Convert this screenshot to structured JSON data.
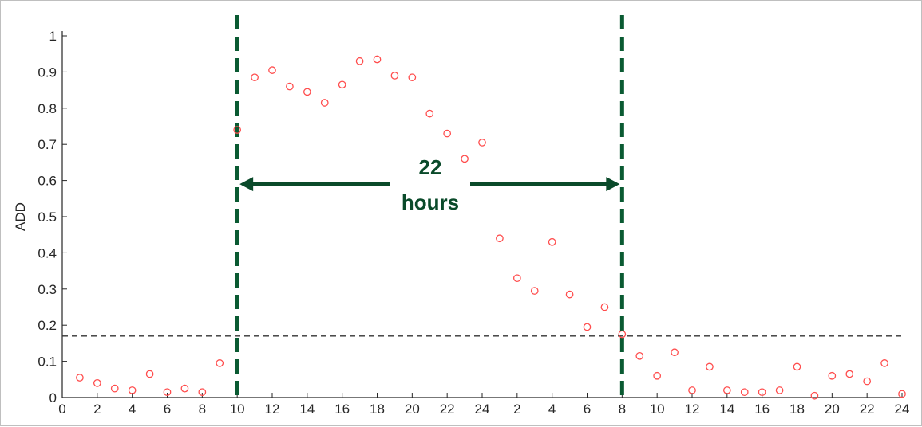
{
  "chart_data": {
    "type": "scatter",
    "title": "",
    "xlabel": "",
    "ylabel": "ADD",
    "x_tick_labels": [
      "0",
      "2",
      "4",
      "6",
      "8",
      "10",
      "12",
      "14",
      "16",
      "18",
      "20",
      "22",
      "24",
      "2",
      "4",
      "6",
      "8",
      "10",
      "12",
      "14",
      "16",
      "18",
      "20",
      "22",
      "24"
    ],
    "y_tick_labels": [
      "0",
      "0.1",
      "0.2",
      "0.3",
      "0.4",
      "0.5",
      "0.6",
      "0.7",
      "0.8",
      "0.9",
      "1"
    ],
    "xlim": [
      0,
      48
    ],
    "ylim": [
      0,
      1
    ],
    "grid": false,
    "series": [
      {
        "marker": "open-circle",
        "color": "#ff4d4d",
        "x": [
          1,
          2,
          3,
          4,
          5,
          6,
          7,
          8,
          9,
          10,
          11,
          12,
          13,
          14,
          15,
          16,
          17,
          18,
          19,
          20,
          21,
          22,
          23,
          24,
          25,
          26,
          27,
          28,
          29,
          30,
          31,
          32,
          33,
          34,
          35,
          36,
          37,
          38,
          39,
          40,
          41,
          42,
          43,
          44,
          45,
          46,
          47,
          48
        ],
        "y": [
          0.055,
          0.04,
          0.025,
          0.02,
          0.065,
          0.015,
          0.025,
          0.015,
          0.095,
          0.74,
          0.885,
          0.905,
          0.86,
          0.845,
          0.815,
          0.865,
          0.93,
          0.935,
          0.89,
          0.885,
          0.785,
          0.73,
          0.66,
          0.705,
          0.44,
          0.33,
          0.295,
          0.43,
          0.285,
          0.195,
          0.25,
          0.175,
          0.115,
          0.06,
          0.125,
          0.02,
          0.085,
          0.02,
          0.015,
          0.015,
          0.02,
          0.085,
          0.005,
          0.06,
          0.065,
          0.045,
          0.095,
          0.01
        ]
      }
    ],
    "threshold_line": {
      "y": 0.17,
      "style": "dashed",
      "color": "#333333"
    },
    "vertical_markers": [
      {
        "x": 10,
        "style": "dashed",
        "color": "#0a5a32"
      },
      {
        "x": 32,
        "style": "dashed",
        "color": "#0a5a32"
      }
    ],
    "annotation": {
      "arrow_from_x": 10,
      "arrow_to_x": 32,
      "arrow_y": 0.59,
      "line1": "22",
      "line2": "hours",
      "color": "#0a4a2a"
    }
  }
}
